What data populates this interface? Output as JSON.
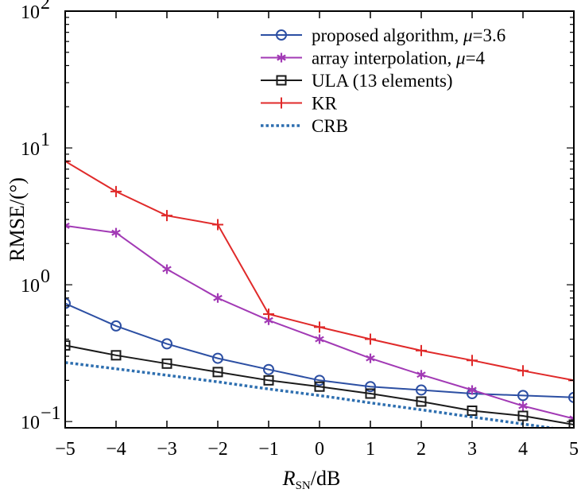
{
  "chart_data": {
    "type": "line",
    "ylabel": "RMSE/(°)",
    "xlabel": {
      "var": "R",
      "sub": "SN",
      "unit": "/dB"
    },
    "xlim": [
      -5,
      5
    ],
    "ylim": [
      0.09,
      100
    ],
    "yscale": "log",
    "x": [
      -5,
      -4,
      -3,
      -2,
      -1,
      0,
      1,
      2,
      3,
      4,
      5
    ],
    "x_tick_labels": [
      "−5",
      "−4",
      "−3",
      "−2",
      "−1",
      "0",
      "1",
      "2",
      "3",
      "4",
      "5"
    ],
    "y_ticks": [
      {
        "value": 0.1,
        "base": "10",
        "exp": "−1"
      },
      {
        "value": 1,
        "base": "10",
        "exp": "0"
      },
      {
        "value": 10,
        "base": "10",
        "exp": "1"
      },
      {
        "value": 100,
        "base": "10",
        "exp": "2"
      }
    ],
    "grid": false,
    "legend_position": "top-right",
    "series": [
      {
        "name": "proposed algorithm, μ=3.6",
        "name_prefix": "proposed algorithm, ",
        "name_var": "μ",
        "name_suffix": "=3.6",
        "color": "#2c4fa3",
        "marker": "circle",
        "dash": "solid",
        "values": [
          0.73,
          0.5,
          0.37,
          0.29,
          0.24,
          0.2,
          0.18,
          0.17,
          0.16,
          0.155,
          0.15
        ]
      },
      {
        "name": "array interpolation, μ=4",
        "name_prefix": "array interpolation, ",
        "name_var": "μ",
        "name_suffix": "=4",
        "color": "#a23ab5",
        "marker": "asterisk",
        "dash": "solid",
        "values": [
          2.7,
          2.4,
          1.3,
          0.8,
          0.55,
          0.4,
          0.29,
          0.22,
          0.17,
          0.13,
          0.105
        ]
      },
      {
        "name": "ULA (13 elements)",
        "name_prefix": "ULA (13 elements)",
        "name_var": "",
        "name_suffix": "",
        "color": "#1a1a1a",
        "marker": "square",
        "dash": "solid",
        "values": [
          0.36,
          0.305,
          0.265,
          0.23,
          0.2,
          0.18,
          0.16,
          0.14,
          0.12,
          0.11,
          0.095
        ]
      },
      {
        "name": "KR",
        "name_prefix": "KR",
        "name_var": "",
        "name_suffix": "",
        "color": "#e02a2a",
        "marker": "plus",
        "dash": "solid",
        "values": [
          8.0,
          4.8,
          3.2,
          2.75,
          0.61,
          0.49,
          0.4,
          0.33,
          0.28,
          0.235,
          0.2
        ]
      },
      {
        "name": "CRB",
        "name_prefix": "CRB",
        "name_var": "",
        "name_suffix": "",
        "color": "#2e6fb0",
        "marker": "none",
        "dash": "dotted",
        "values": [
          0.27,
          0.243,
          0.218,
          0.195,
          0.173,
          0.155,
          0.137,
          0.122,
          0.108,
          0.096,
          0.085
        ]
      }
    ]
  }
}
